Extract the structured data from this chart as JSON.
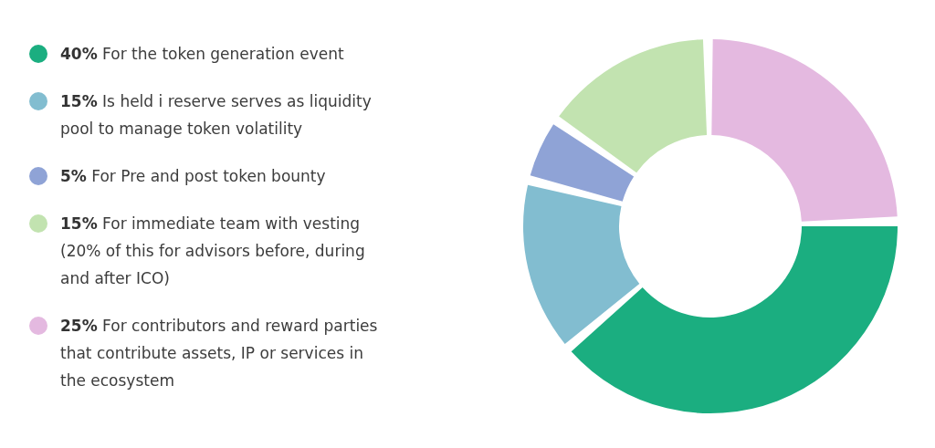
{
  "chart_data": {
    "type": "donut",
    "categories": [
      "40% For the token generation event",
      "15% Is held i reserve serves as liquidity pool to manage token volatility",
      "5% For Pre and post token bounty",
      "15% For immediate team with vesting (20% of this for advisors before, during and after ICO)",
      "25% For contributors and reward parties that contribute assets, IP or services in the ecosystem"
    ],
    "values": [
      40,
      15,
      5,
      15,
      25
    ],
    "colors": [
      "#1bae80",
      "#82bdd0",
      "#8fa3d6",
      "#c2e3b0",
      "#e4b9e0"
    ],
    "legend": "left"
  }
}
